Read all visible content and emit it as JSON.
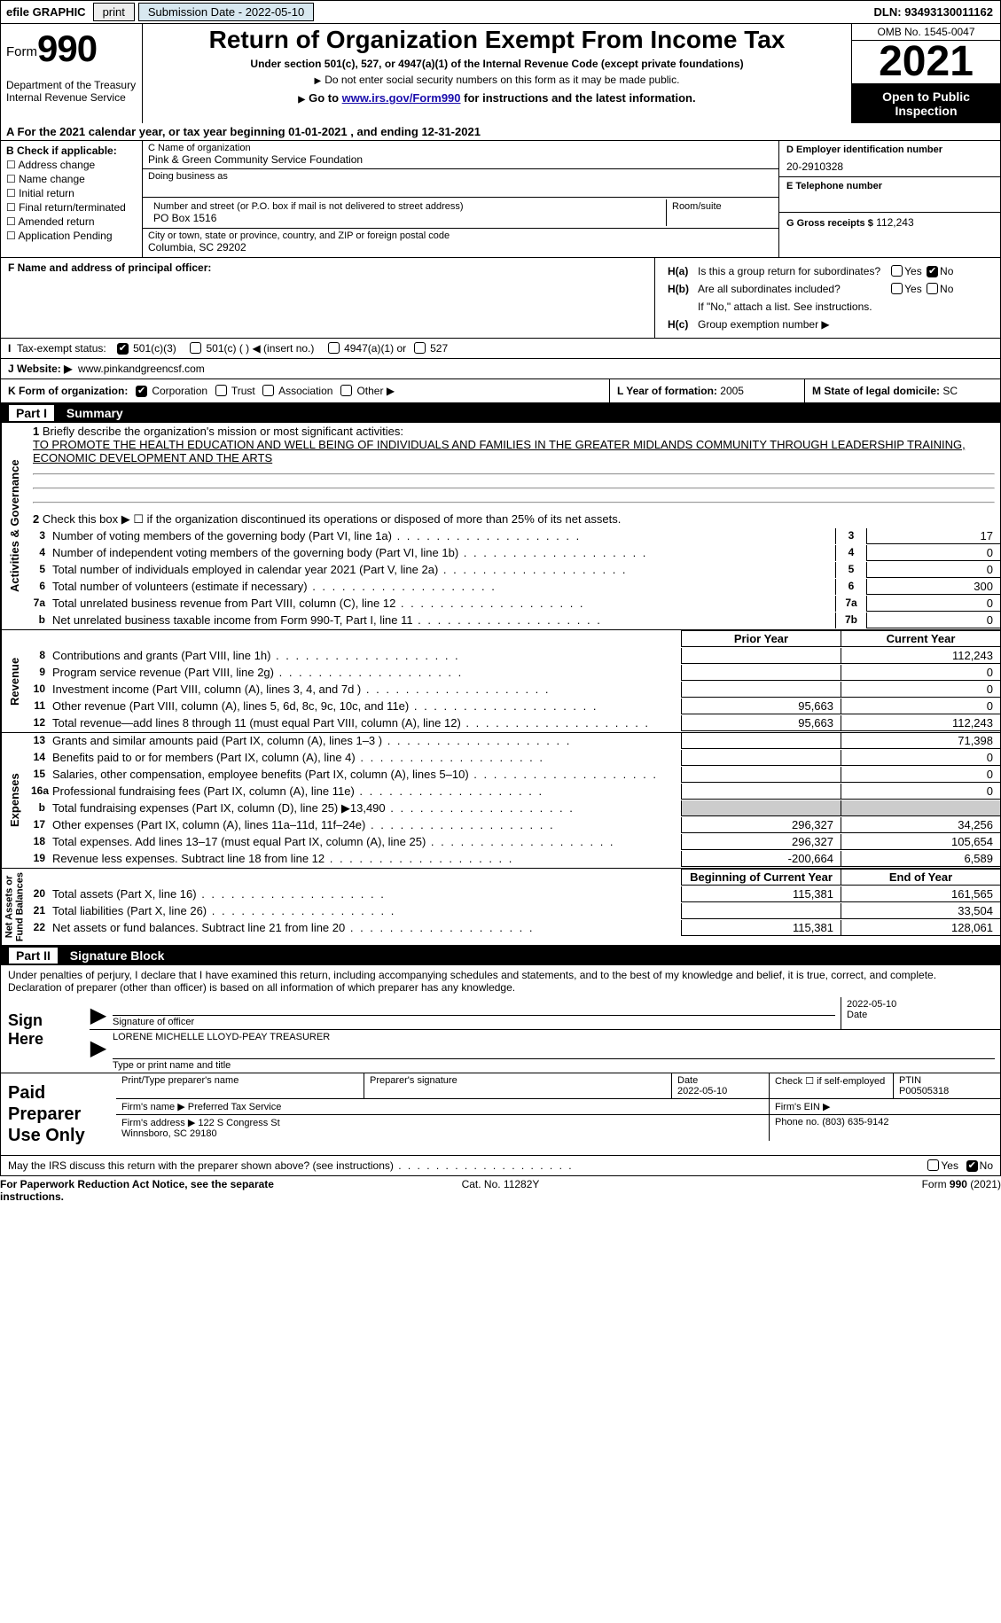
{
  "topbar": {
    "efile_label": "efile GRAPHIC",
    "print_btn": "print",
    "sub_label": "Submission Date - 2022-05-10",
    "dln": "DLN: 93493130011162"
  },
  "header": {
    "form_word": "Form",
    "form_no": "990",
    "title": "Return of Organization Exempt From Income Tax",
    "subhead": "Under section 501(c), 527, or 4947(a)(1) of the Internal Revenue Code (except private foundations)",
    "no_ssn": "Do not enter social security numbers on this form as it may be made public.",
    "goto_pre": "Go to ",
    "goto_link": "www.irs.gov/Form990",
    "goto_post": " for instructions and the latest information.",
    "dept": "Department of the Treasury\nInternal Revenue Service",
    "omb": "OMB No. 1545-0047",
    "year": "2021",
    "open": "Open to Public Inspection"
  },
  "rowA": {
    "text_pre": "A For the 2021 calendar year, or tax year beginning ",
    "begin": "01-01-2021",
    "mid": " , and ending ",
    "end": "12-31-2021"
  },
  "colB": {
    "label": "B Check if applicable:",
    "items": [
      "Address change",
      "Name change",
      "Initial return",
      "Final return/terminated",
      "Amended return",
      "Application Pending"
    ]
  },
  "colC": {
    "name_lbl": "C Name of organization",
    "name_val": "Pink & Green Community Service Foundation",
    "dba_lbl": "Doing business as",
    "dba_val": "",
    "street_lbl": "Number and street (or P.O. box if mail is not delivered to street address)",
    "street_val": "PO Box 1516",
    "room_lbl": "Room/suite",
    "city_lbl": "City or town, state or province, country, and ZIP or foreign postal code",
    "city_val": "Columbia, SC  29202"
  },
  "colD": {
    "ein_lbl": "D Employer identification number",
    "ein_val": "20-2910328",
    "tel_lbl": "E Telephone number",
    "tel_val": "",
    "gross_lbl": "G Gross receipts $",
    "gross_val": "112,243"
  },
  "fh": {
    "f_lbl": "F Name and address of principal officer:",
    "ha": "Is this a group return for subordinates?",
    "hb": "Are all subordinates included?",
    "hb_note": "If \"No,\" attach a list. See instructions.",
    "hc": "Group exemption number ▶",
    "ha_tag": "H(a)",
    "hb_tag": "H(b)",
    "hc_tag": "H(c)"
  },
  "rowI": {
    "label": "Tax-exempt status:",
    "opt1": "501(c)(3)",
    "opt2": "501(c) (   ) ◀ (insert no.)",
    "opt3": "4947(a)(1) or",
    "opt4": "527"
  },
  "rowJ": {
    "label": "J   Website: ▶",
    "val": "www.pinkandgreencsf.com"
  },
  "rowK": {
    "label": "K Form of organization:",
    "opts": [
      "Corporation",
      "Trust",
      "Association",
      "Other ▶"
    ],
    "l_lbl": "L Year of formation:",
    "l_val": "2005",
    "m_lbl": "M State of legal domicile:",
    "m_val": "SC"
  },
  "part1": {
    "tag": "Part I",
    "title": "Summary",
    "mission_lbl": "Briefly describe the organization's mission or most significant activities:",
    "mission_val": "TO PROMOTE THE HEALTH EDUCATION AND WELL BEING OF INDIVIDUALS AND FAMILIES IN THE GREATER MIDLANDS COMMUNITY THROUGH LEADERSHIP TRAINING, ECONOMIC DEVELOPMENT AND THE ARTS",
    "line2": "Check this box ▶ ☐ if the organization discontinued its operations or disposed of more than 25% of its net assets.",
    "gov_lines": [
      {
        "n": "3",
        "d": "Number of voting members of the governing body (Part VI, line 1a)",
        "box": "3",
        "v": "17"
      },
      {
        "n": "4",
        "d": "Number of independent voting members of the governing body (Part VI, line 1b)",
        "box": "4",
        "v": "0"
      },
      {
        "n": "5",
        "d": "Total number of individuals employed in calendar year 2021 (Part V, line 2a)",
        "box": "5",
        "v": "0"
      },
      {
        "n": "6",
        "d": "Total number of volunteers (estimate if necessary)",
        "box": "6",
        "v": "300"
      },
      {
        "n": "7a",
        "d": "Total unrelated business revenue from Part VIII, column (C), line 12",
        "box": "7a",
        "v": "0"
      },
      {
        "n": "b",
        "d": "Net unrelated business taxable income from Form 990-T, Part I, line 11",
        "box": "7b",
        "v": "0"
      }
    ],
    "py_hdr": "Prior Year",
    "cy_hdr": "Current Year",
    "boy_hdr": "Beginning of Current Year",
    "eoy_hdr": "End of Year",
    "rev_lines": [
      {
        "n": "8",
        "d": "Contributions and grants (Part VIII, line 1h)",
        "py": "",
        "cy": "112,243"
      },
      {
        "n": "9",
        "d": "Program service revenue (Part VIII, line 2g)",
        "py": "",
        "cy": "0"
      },
      {
        "n": "10",
        "d": "Investment income (Part VIII, column (A), lines 3, 4, and 7d )",
        "py": "",
        "cy": "0"
      },
      {
        "n": "11",
        "d": "Other revenue (Part VIII, column (A), lines 5, 6d, 8c, 9c, 10c, and 11e)",
        "py": "95,663",
        "cy": "0"
      },
      {
        "n": "12",
        "d": "Total revenue—add lines 8 through 11 (must equal Part VIII, column (A), line 12)",
        "py": "95,663",
        "cy": "112,243"
      }
    ],
    "exp_lines": [
      {
        "n": "13",
        "d": "Grants and similar amounts paid (Part IX, column (A), lines 1–3 )",
        "py": "",
        "cy": "71,398"
      },
      {
        "n": "14",
        "d": "Benefits paid to or for members (Part IX, column (A), line 4)",
        "py": "",
        "cy": "0"
      },
      {
        "n": "15",
        "d": "Salaries, other compensation, employee benefits (Part IX, column (A), lines 5–10)",
        "py": "",
        "cy": "0"
      },
      {
        "n": "16a",
        "d": "Professional fundraising fees (Part IX, column (A), line 11e)",
        "py": "",
        "cy": "0"
      },
      {
        "n": "b",
        "d": "Total fundraising expenses (Part IX, column (D), line 25) ▶13,490",
        "py": "shade",
        "cy": "shade"
      },
      {
        "n": "17",
        "d": "Other expenses (Part IX, column (A), lines 11a–11d, 11f–24e)",
        "py": "296,327",
        "cy": "34,256"
      },
      {
        "n": "18",
        "d": "Total expenses. Add lines 13–17 (must equal Part IX, column (A), line 25)",
        "py": "296,327",
        "cy": "105,654"
      },
      {
        "n": "19",
        "d": "Revenue less expenses. Subtract line 18 from line 12",
        "py": "-200,664",
        "cy": "6,589"
      }
    ],
    "net_lines": [
      {
        "n": "20",
        "d": "Total assets (Part X, line 16)",
        "py": "115,381",
        "cy": "161,565"
      },
      {
        "n": "21",
        "d": "Total liabilities (Part X, line 26)",
        "py": "",
        "cy": "33,504"
      },
      {
        "n": "22",
        "d": "Net assets or fund balances. Subtract line 21 from line 20",
        "py": "115,381",
        "cy": "128,061"
      }
    ],
    "vlabels": {
      "gov": "Activities & Governance",
      "rev": "Revenue",
      "exp": "Expenses",
      "net": "Net Assets or\nFund Balances"
    }
  },
  "part2": {
    "tag": "Part II",
    "title": "Signature Block",
    "intro": "Under penalties of perjury, I declare that I have examined this return, including accompanying schedules and statements, and to the best of my knowledge and belief, it is true, correct, and complete. Declaration of preparer (other than officer) is based on all information of which preparer has any knowledge.",
    "sign_here": "Sign Here",
    "sig_officer_lbl": "Signature of officer",
    "sig_date": "2022-05-10",
    "date_lbl": "Date",
    "officer_name": "LORENE MICHELLE LLOYD-PEAY TREASURER",
    "officer_name_lbl": "Type or print name and title",
    "paid": "Paid Preparer Use Only",
    "prep_name_lbl": "Print/Type preparer's name",
    "prep_sig_lbl": "Preparer's signature",
    "prep_date_lbl": "Date",
    "prep_date": "2022-05-10",
    "check_self": "Check ☐ if self-employed",
    "ptin_lbl": "PTIN",
    "ptin": "P00505318",
    "firm_name_lbl": "Firm's name    ▶",
    "firm_name": "Preferred Tax Service",
    "firm_ein_lbl": "Firm's EIN ▶",
    "firm_ein": "",
    "firm_addr_lbl": "Firm's address ▶",
    "firm_addr": "122 S Congress St\nWinnsboro, SC  29180",
    "phone_lbl": "Phone no.",
    "phone": "(803) 635-9142"
  },
  "footer": {
    "may": "May the IRS discuss this return with the preparer shown above? (see instructions)",
    "pra": "For Paperwork Reduction Act Notice, see the separate instructions.",
    "cat": "Cat. No. 11282Y",
    "form": "Form 990 (2021)"
  },
  "yn": {
    "yes": "Yes",
    "no": "No"
  }
}
